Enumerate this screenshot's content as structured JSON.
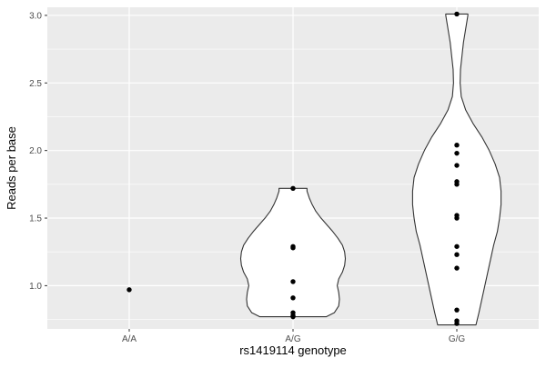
{
  "chart_data": {
    "type": "violin",
    "xlabel": "rs1419114 genotype",
    "ylabel": "Reads per base",
    "categories": [
      "A/A",
      "A/G",
      "G/G"
    ],
    "ylim": [
      0.68,
      3.06
    ],
    "yticks": [
      1.0,
      1.5,
      2.0,
      2.5,
      3.0
    ],
    "ytick_labels": [
      "1.0",
      "1.5",
      "2.0",
      "2.5",
      "3.0"
    ],
    "grid": true,
    "legend": "none",
    "points": [
      {
        "category": "A/A",
        "values": [
          0.97
        ]
      },
      {
        "category": "A/G",
        "values": [
          1.72,
          1.29,
          1.28,
          1.03,
          0.91,
          0.8,
          0.78,
          0.77
        ]
      },
      {
        "category": "G/G",
        "values": [
          3.01,
          2.04,
          1.98,
          1.89,
          1.77,
          1.75,
          1.52,
          1.5,
          1.29,
          1.23,
          1.13,
          0.82,
          0.74,
          0.72
        ]
      }
    ],
    "violins": [
      {
        "category": "A/G",
        "profile": [
          [
            0.77,
            0.45
          ],
          [
            0.8,
            0.56
          ],
          [
            0.85,
            0.62
          ],
          [
            0.9,
            0.63
          ],
          [
            0.95,
            0.62
          ],
          [
            1.0,
            0.6
          ],
          [
            1.05,
            0.62
          ],
          [
            1.1,
            0.67
          ],
          [
            1.15,
            0.7
          ],
          [
            1.2,
            0.71
          ],
          [
            1.25,
            0.7
          ],
          [
            1.3,
            0.67
          ],
          [
            1.35,
            0.61
          ],
          [
            1.4,
            0.54
          ],
          [
            1.45,
            0.46
          ],
          [
            1.5,
            0.38
          ],
          [
            1.55,
            0.31
          ],
          [
            1.6,
            0.26
          ],
          [
            1.65,
            0.22
          ],
          [
            1.7,
            0.19
          ],
          [
            1.72,
            0.19
          ]
        ]
      },
      {
        "category": "G/G",
        "profile": [
          [
            0.71,
            0.26
          ],
          [
            0.8,
            0.3
          ],
          [
            0.9,
            0.34
          ],
          [
            1.0,
            0.38
          ],
          [
            1.1,
            0.42
          ],
          [
            1.2,
            0.46
          ],
          [
            1.3,
            0.5
          ],
          [
            1.4,
            0.55
          ],
          [
            1.5,
            0.58
          ],
          [
            1.6,
            0.6
          ],
          [
            1.7,
            0.6
          ],
          [
            1.8,
            0.58
          ],
          [
            1.9,
            0.52
          ],
          [
            2.0,
            0.44
          ],
          [
            2.1,
            0.34
          ],
          [
            2.2,
            0.22
          ],
          [
            2.3,
            0.12
          ],
          [
            2.4,
            0.06
          ],
          [
            2.5,
            0.045
          ],
          [
            2.6,
            0.05
          ],
          [
            2.7,
            0.07
          ],
          [
            2.8,
            0.09
          ],
          [
            2.9,
            0.12
          ],
          [
            3.0,
            0.15
          ],
          [
            3.01,
            0.15
          ]
        ]
      }
    ],
    "colors": {
      "panel": "#ebebeb",
      "grid": "#ffffff",
      "violin_fill": "#ffffff",
      "violin_stroke": "#333333",
      "point": "#000000"
    }
  }
}
